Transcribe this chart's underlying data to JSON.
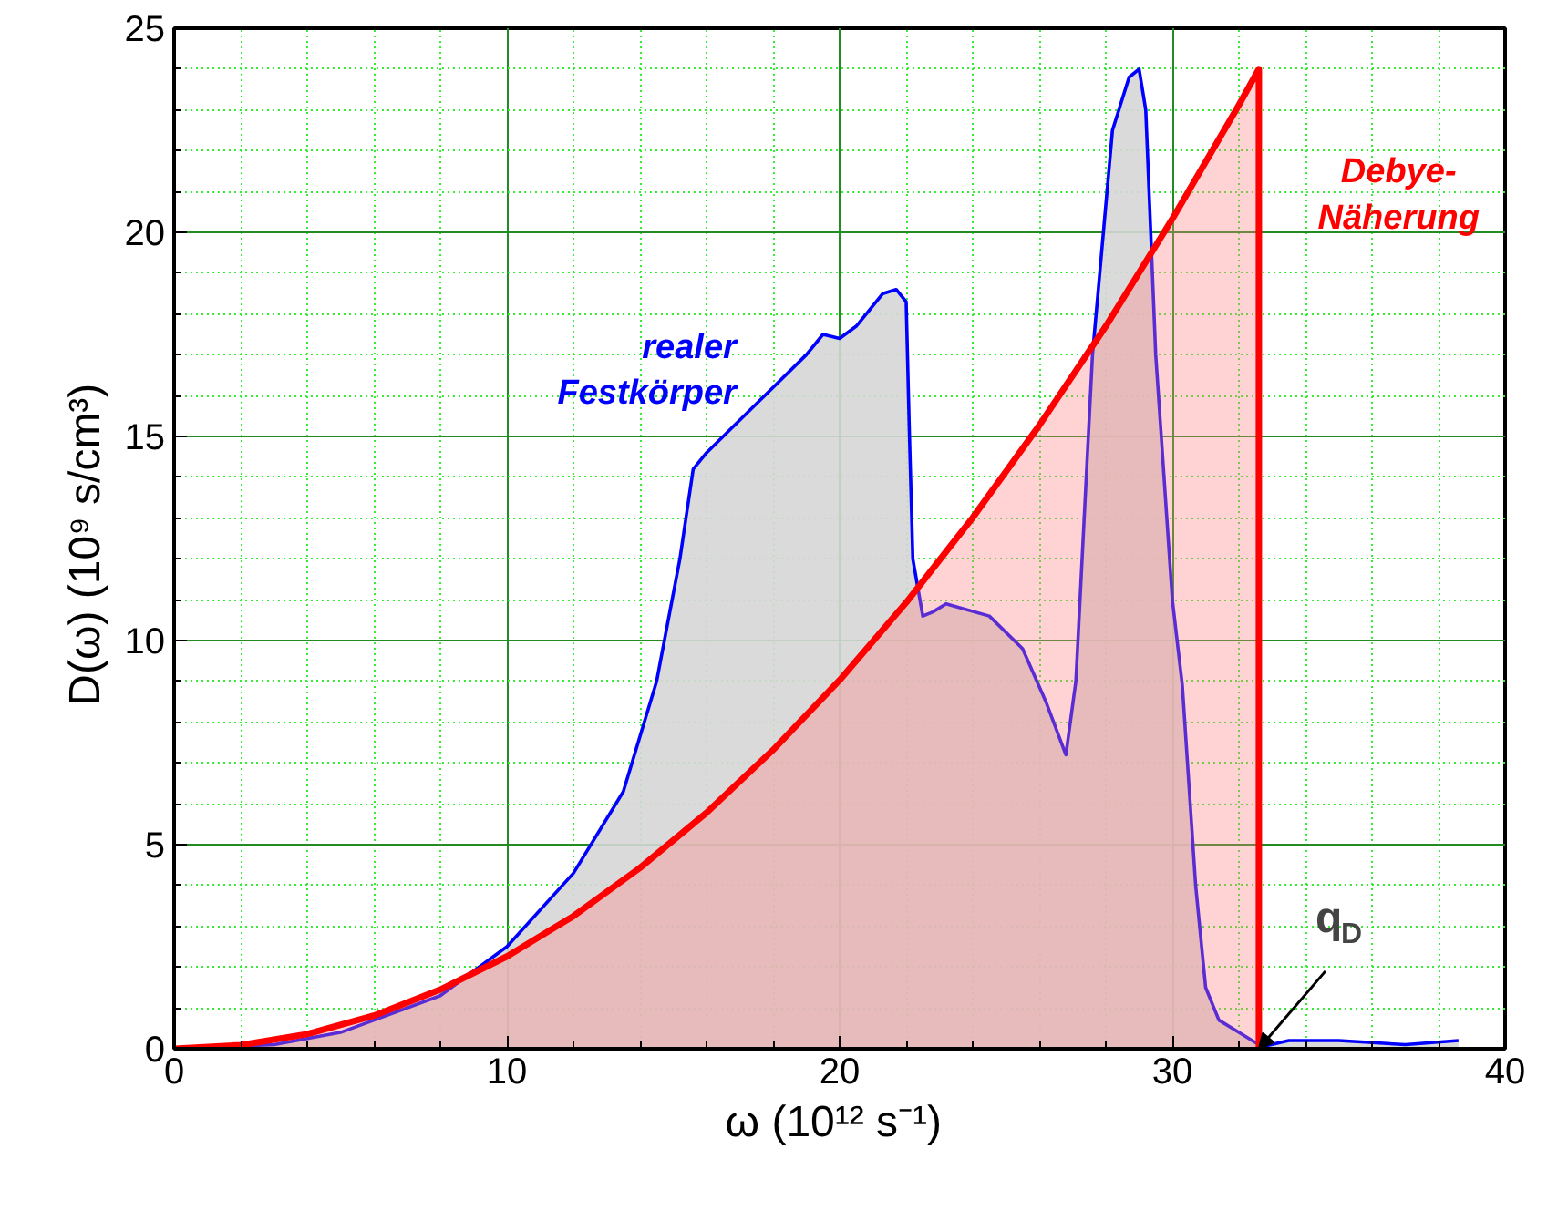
{
  "chart_data": {
    "type": "area",
    "xlabel": "ω  (10¹² s⁻¹)",
    "ylabel": "D(ω)  (10⁹ s/cm³)",
    "xlim": [
      0,
      40
    ],
    "ylim": [
      0,
      25
    ],
    "xticks": [
      0,
      {
        "value": 2,
        "label": null
      },
      {
        "value": 4,
        "label": null
      },
      {
        "value": 6,
        "label": null
      },
      {
        "value": 8,
        "label": null
      },
      10,
      {
        "value": 12,
        "label": null
      },
      {
        "value": 14,
        "label": null
      },
      {
        "value": 16,
        "label": null
      },
      {
        "value": 18,
        "label": null
      },
      20,
      {
        "value": 22,
        "label": null
      },
      {
        "value": 24,
        "label": null
      },
      {
        "value": 26,
        "label": null
      },
      {
        "value": 28,
        "label": null
      },
      30,
      {
        "value": 32,
        "label": null
      },
      {
        "value": 34,
        "label": null
      },
      {
        "value": 36,
        "label": null
      },
      {
        "value": 38,
        "label": null
      },
      40
    ],
    "yticks": [
      0,
      {
        "value": 1,
        "label": null
      },
      {
        "value": 2,
        "label": null
      },
      {
        "value": 3,
        "label": null
      },
      {
        "value": 4,
        "label": null
      },
      5,
      {
        "value": 6,
        "label": null
      },
      {
        "value": 7,
        "label": null
      },
      {
        "value": 8,
        "label": null
      },
      {
        "value": 9,
        "label": null
      },
      10,
      {
        "value": 11,
        "label": null
      },
      {
        "value": 12,
        "label": null
      },
      {
        "value": 13,
        "label": null
      },
      {
        "value": 14,
        "label": null
      },
      15,
      {
        "value": 16,
        "label": null
      },
      {
        "value": 17,
        "label": null
      },
      {
        "value": 18,
        "label": null
      },
      {
        "value": 19,
        "label": null
      },
      20,
      {
        "value": 21,
        "label": null
      },
      {
        "value": 22,
        "label": null
      },
      {
        "value": 23,
        "label": null
      },
      {
        "value": 24,
        "label": null
      },
      25
    ],
    "grid": true,
    "series": [
      {
        "name": "realer Festkörper",
        "color": "#0000ff",
        "x": [
          0,
          3,
          5,
          8,
          10,
          12,
          13.5,
          14.5,
          15.2,
          15.6,
          16,
          17,
          18,
          19,
          19.5,
          20,
          20.5,
          21.3,
          21.7,
          22.0,
          22.1,
          22.2,
          22.5,
          22.8,
          23.2,
          24.5,
          25.5,
          26.2,
          26.8,
          27.1,
          27.6,
          28.2,
          28.7,
          29.0,
          29.2,
          29.5,
          30.0,
          30.3,
          30.7,
          31.0,
          31.4,
          32,
          32.7,
          33.5,
          35,
          37,
          38.6
        ],
        "values": [
          0,
          0.1,
          0.4,
          1.3,
          2.5,
          4.3,
          6.3,
          9,
          12,
          14.2,
          14.6,
          15.4,
          16.2,
          17,
          17.5,
          17.4,
          17.7,
          18.5,
          18.6,
          18.3,
          15,
          12,
          10.6,
          10.7,
          10.9,
          10.6,
          9.8,
          8.5,
          7.2,
          9,
          17,
          22.5,
          23.8,
          24,
          23,
          17,
          11,
          8.9,
          4,
          1.5,
          0.7,
          0.4,
          0.05,
          0.2,
          0.2,
          0.1,
          0.2
        ]
      },
      {
        "name": "Debye-Näherung",
        "color": "#ff0000",
        "x": [
          0,
          2,
          4,
          6,
          8,
          10,
          12,
          14,
          16,
          18,
          20,
          22,
          24,
          26,
          28,
          30,
          32,
          32.6,
          32.6
        ],
        "values": [
          0,
          0.09,
          0.36,
          0.81,
          1.45,
          2.26,
          3.25,
          4.43,
          5.78,
          7.32,
          9.03,
          10.93,
          13.01,
          15.27,
          17.7,
          20.33,
          23.12,
          24,
          0
        ]
      }
    ],
    "annotations": [
      {
        "text": "q$_{D}$",
        "x": 32.6,
        "y": 0
      }
    ]
  }
}
